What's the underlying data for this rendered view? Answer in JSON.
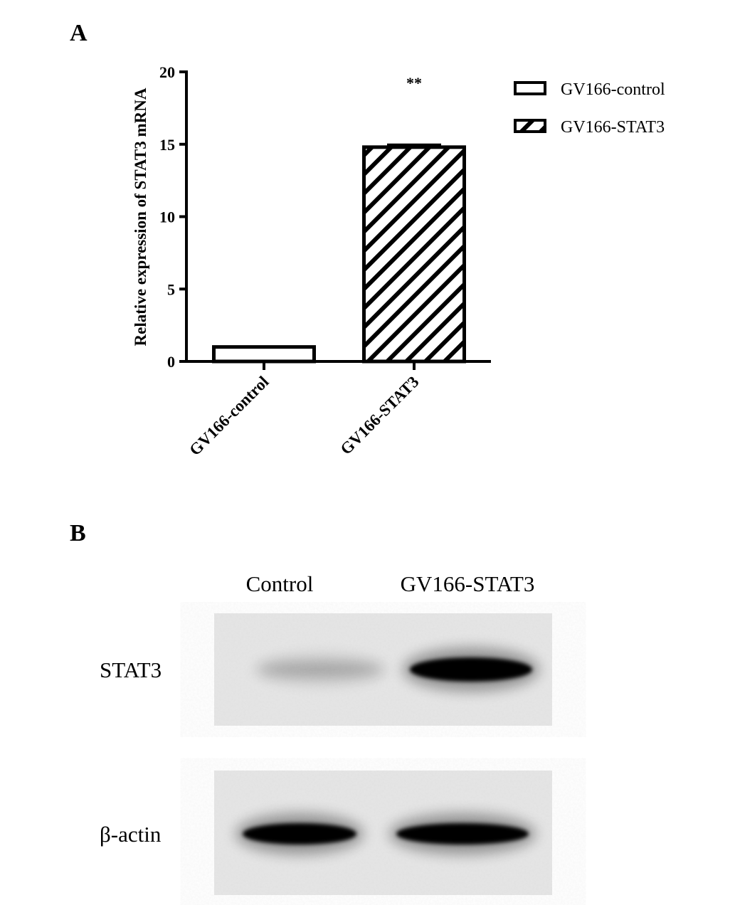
{
  "panels": {
    "a_label": "A",
    "b_label": "B"
  },
  "chart_data": {
    "type": "bar",
    "title": "",
    "xlabel": "",
    "ylabel": "Relative expression of STAT3 mRNA",
    "ylim": [
      0,
      20
    ],
    "yticks": [
      0,
      5,
      10,
      15,
      20
    ],
    "categories": [
      "GV166-control",
      "GV166-STAT3"
    ],
    "values": [
      1.0,
      14.8
    ],
    "error": [
      0,
      0.25
    ],
    "patterns": [
      "open",
      "diagonal-hatch"
    ],
    "annotations": [
      {
        "category": "GV166-STAT3",
        "text": "**"
      }
    ],
    "legend": {
      "placement": "top-right",
      "entries": [
        "GV166-control",
        "GV166-STAT3"
      ]
    },
    "grid": false
  },
  "blot": {
    "lanes": [
      "Control",
      "GV166-STAT3"
    ],
    "rows": [
      {
        "label": "STAT3"
      },
      {
        "label": "β-actin"
      }
    ]
  }
}
